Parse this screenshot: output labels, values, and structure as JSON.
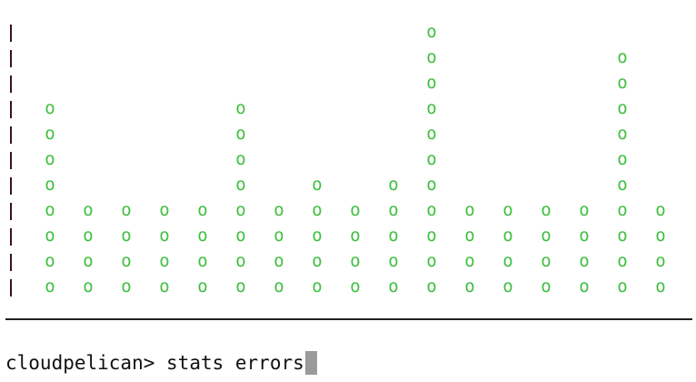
{
  "terminal": {
    "prompt": "cloudpelican>",
    "command": "stats errors",
    "colors": {
      "marker": "#3fbf3f",
      "axis": "#3a1414",
      "text": "#111111",
      "cursor": "#9a9a9a"
    }
  },
  "chart_data": {
    "type": "bar",
    "marker_glyph": "o",
    "axis_glyph": "|",
    "ylim": [
      0,
      11
    ],
    "values": [
      8,
      4,
      4,
      4,
      4,
      8,
      4,
      5,
      4,
      5,
      11,
      4,
      4,
      4,
      4,
      10,
      4
    ]
  }
}
